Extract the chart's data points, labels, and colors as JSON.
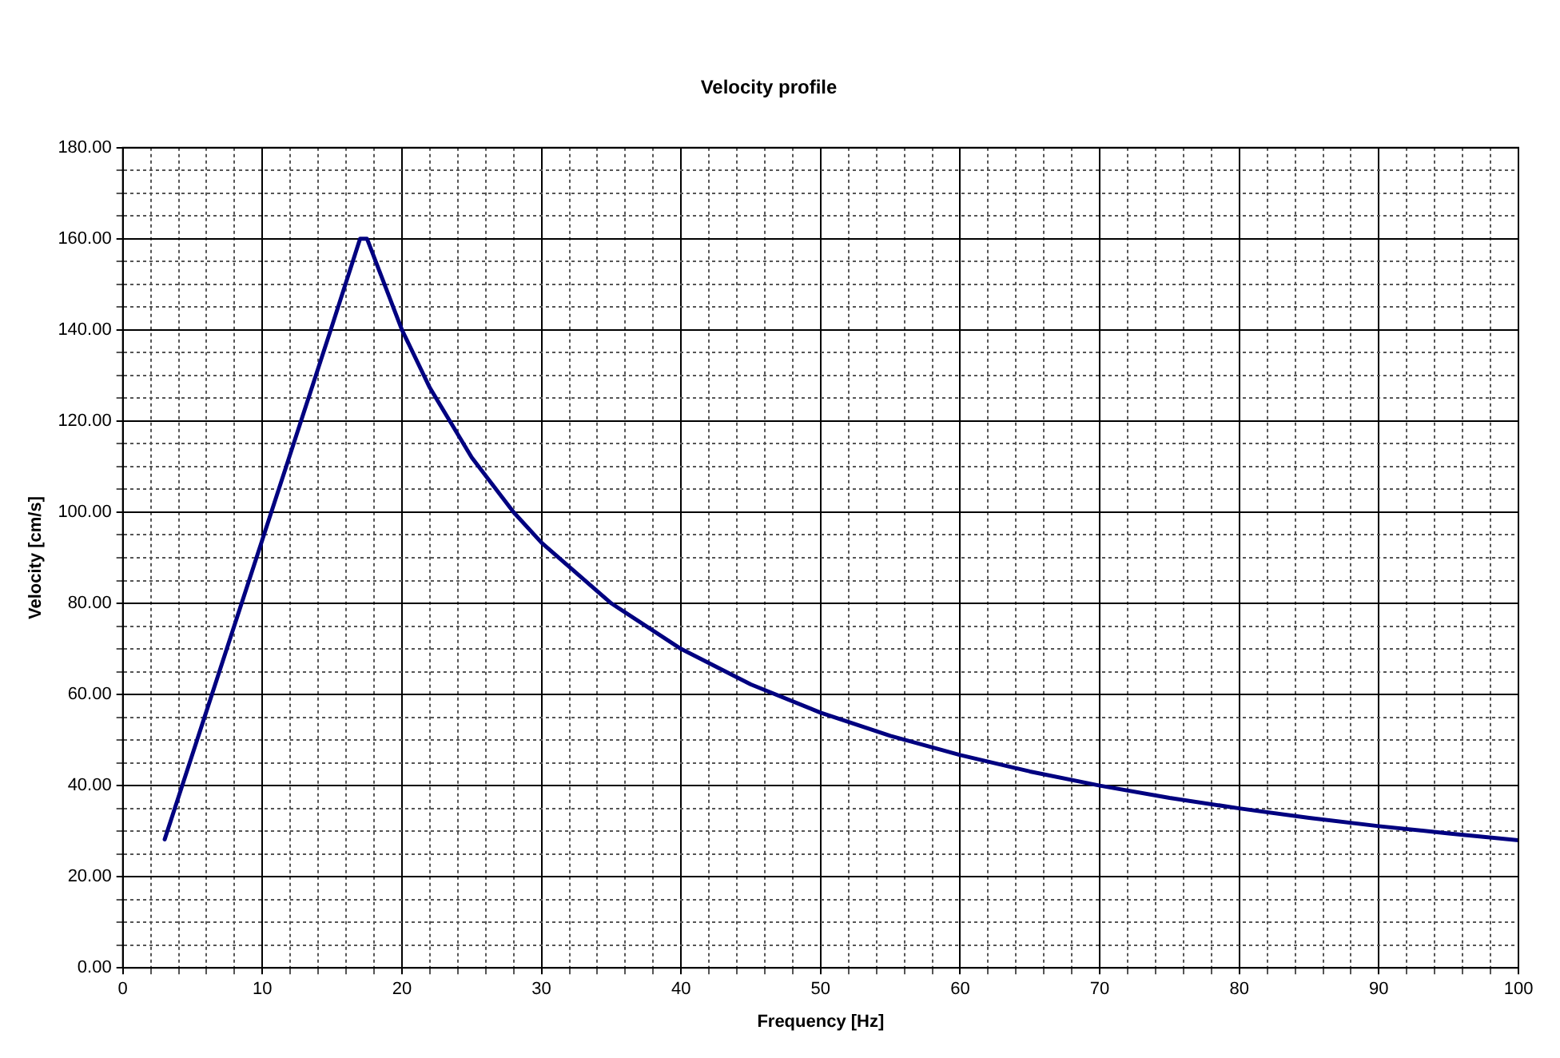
{
  "chart_data": {
    "type": "line",
    "title": "Velocity profile",
    "xlabel": "Frequency [Hz]",
    "ylabel": "Velocity [cm/s]",
    "x": [
      3,
      5,
      7,
      10,
      12,
      15,
      17,
      17.5,
      20,
      22,
      25,
      28,
      30,
      35,
      40,
      45,
      50,
      55,
      60,
      65,
      70,
      75,
      80,
      85,
      90,
      95,
      100
    ],
    "series": [
      {
        "color": "#000080",
        "values": [
          28.2,
          47,
          65.8,
          94,
          112.8,
          141,
          160,
          160,
          140,
          127.3,
          112,
          100,
          93.3,
          80,
          70,
          62.2,
          56,
          50.9,
          46.7,
          43.1,
          40,
          37.3,
          35,
          32.9,
          31.1,
          29.5,
          28
        ]
      }
    ],
    "xlim": [
      0,
      100
    ],
    "xticks": [
      0,
      {
        "value": 2,
        "label": null
      },
      {
        "value": 4,
        "label": null
      },
      {
        "value": 6,
        "label": null
      },
      {
        "value": 8,
        "label": null
      },
      10,
      {
        "value": 12,
        "label": null
      },
      {
        "value": 14,
        "label": null
      },
      {
        "value": 16,
        "label": null
      },
      {
        "value": 18,
        "label": null
      },
      20,
      {
        "value": 22,
        "label": null
      },
      {
        "value": 24,
        "label": null
      },
      {
        "value": 26,
        "label": null
      },
      {
        "value": 28,
        "label": null
      },
      30,
      {
        "value": 32,
        "label": null
      },
      {
        "value": 34,
        "label": null
      },
      {
        "value": 36,
        "label": null
      },
      {
        "value": 38,
        "label": null
      },
      40,
      {
        "value": 42,
        "label": null
      },
      {
        "value": 44,
        "label": null
      },
      {
        "value": 46,
        "label": null
      },
      {
        "value": 48,
        "label": null
      },
      50,
      {
        "value": 52,
        "label": null
      },
      {
        "value": 54,
        "label": null
      },
      {
        "value": 56,
        "label": null
      },
      {
        "value": 58,
        "label": null
      },
      60,
      {
        "value": 62,
        "label": null
      },
      {
        "value": 64,
        "label": null
      },
      {
        "value": 66,
        "label": null
      },
      {
        "value": 68,
        "label": null
      },
      70,
      {
        "value": 72,
        "label": null
      },
      {
        "value": 74,
        "label": null
      },
      {
        "value": 76,
        "label": null
      },
      {
        "value": 78,
        "label": null
      },
      80,
      {
        "value": 82,
        "label": null
      },
      {
        "value": 84,
        "label": null
      },
      {
        "value": 86,
        "label": null
      },
      {
        "value": 88,
        "label": null
      },
      90,
      {
        "value": 92,
        "label": null
      },
      {
        "value": 94,
        "label": null
      },
      {
        "value": 96,
        "label": null
      },
      {
        "value": 98,
        "label": null
      },
      100
    ],
    "ylim": [
      0,
      180
    ],
    "yticks": [
      {
        "value": 0,
        "label": "0.00"
      },
      {
        "value": 5,
        "label": null
      },
      {
        "value": 10,
        "label": null
      },
      {
        "value": 15,
        "label": null
      },
      {
        "value": 20,
        "label": "20.00"
      },
      {
        "value": 25,
        "label": null
      },
      {
        "value": 30,
        "label": null
      },
      {
        "value": 35,
        "label": null
      },
      {
        "value": 40,
        "label": "40.00"
      },
      {
        "value": 45,
        "label": null
      },
      {
        "value": 50,
        "label": null
      },
      {
        "value": 55,
        "label": null
      },
      {
        "value": 60,
        "label": "60.00"
      },
      {
        "value": 65,
        "label": null
      },
      {
        "value": 70,
        "label": null
      },
      {
        "value": 75,
        "label": null
      },
      {
        "value": 80,
        "label": "80.00"
      },
      {
        "value": 85,
        "label": null
      },
      {
        "value": 90,
        "label": null
      },
      {
        "value": 95,
        "label": null
      },
      {
        "value": 100,
        "label": "100.00"
      },
      {
        "value": 105,
        "label": null
      },
      {
        "value": 110,
        "label": null
      },
      {
        "value": 115,
        "label": null
      },
      {
        "value": 120,
        "label": "120.00"
      },
      {
        "value": 125,
        "label": null
      },
      {
        "value": 130,
        "label": null
      },
      {
        "value": 135,
        "label": null
      },
      {
        "value": 140,
        "label": "140.00"
      },
      {
        "value": 145,
        "label": null
      },
      {
        "value": 150,
        "label": null
      },
      {
        "value": 155,
        "label": null
      },
      {
        "value": 160,
        "label": "160.00"
      },
      {
        "value": 165,
        "label": null
      },
      {
        "value": 170,
        "label": null
      },
      {
        "value": 175,
        "label": null
      },
      {
        "value": 180,
        "label": "180.00"
      }
    ],
    "grid": true,
    "marker": "none",
    "line_style": "solid",
    "legend": false
  }
}
